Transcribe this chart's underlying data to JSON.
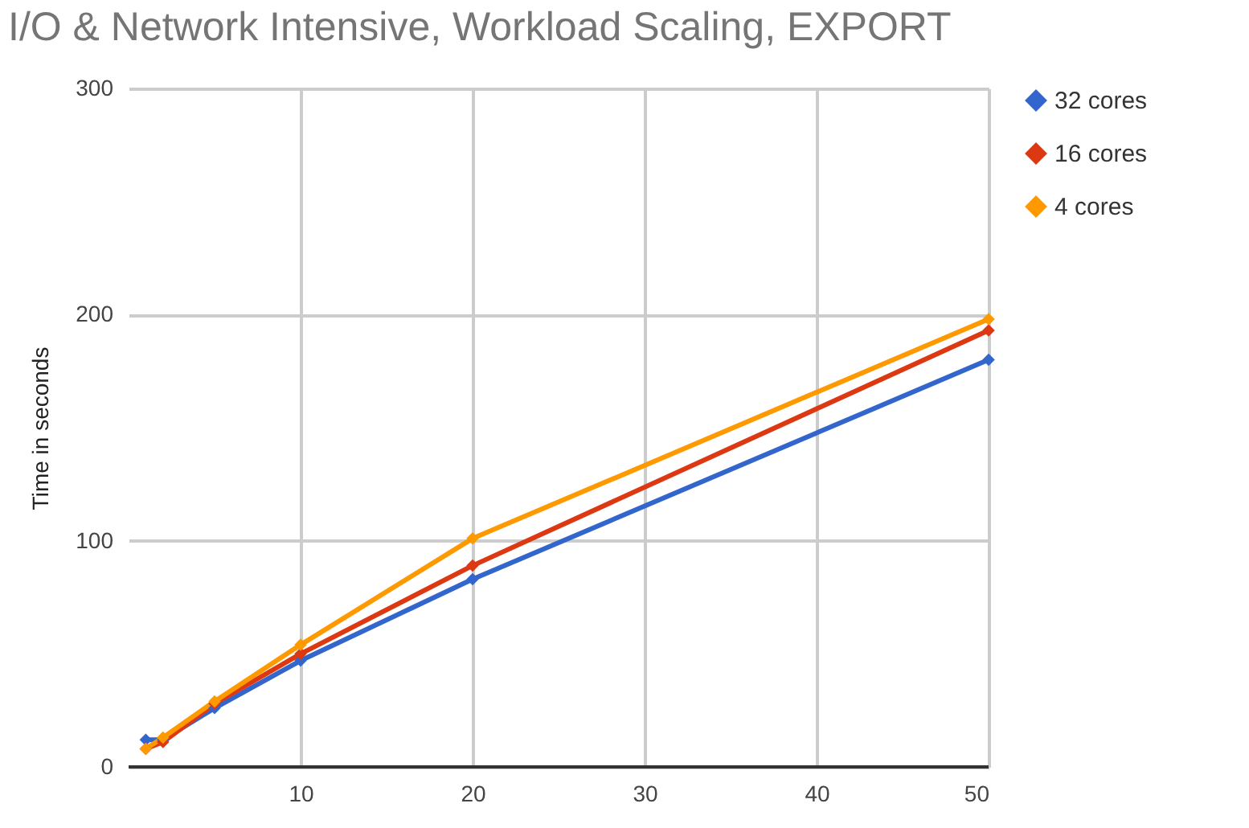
{
  "chart_data": {
    "type": "line",
    "title": "I/O & Network Intensive, Workload Scaling, EXPORT",
    "ylabel": "Time in seconds",
    "x": [
      1,
      2,
      5,
      10,
      20,
      50
    ],
    "series": [
      {
        "name": "32 cores",
        "color": "#3366cc",
        "values": [
          12,
          12,
          26,
          47,
          83,
          180
        ]
      },
      {
        "name": "16 cores",
        "color": "#dc3912",
        "values": [
          8,
          11,
          28,
          50,
          89,
          193
        ]
      },
      {
        "name": "4 cores",
        "color": "#ff9900",
        "values": [
          8,
          13,
          29,
          54,
          101,
          198
        ]
      }
    ],
    "xlim": [
      0,
      50
    ],
    "xticks": [
      10,
      20,
      30,
      40,
      50
    ],
    "ylim": [
      0,
      300
    ],
    "yticks": [
      0,
      100,
      200,
      300
    ],
    "grid": true,
    "legend": "top right",
    "marker": "diamond",
    "line_style": "solid"
  }
}
